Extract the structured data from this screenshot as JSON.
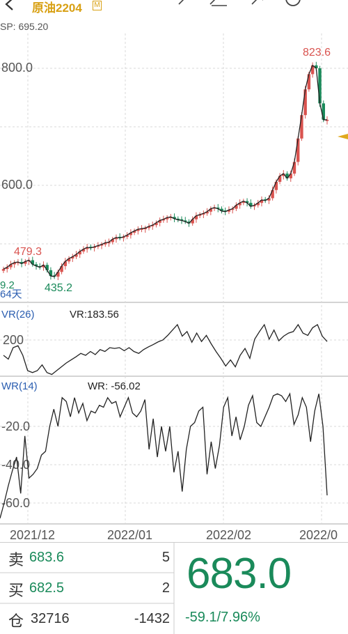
{
  "header": {
    "instrument": "原油2204",
    "badge": "M",
    "sp_label": "SP: 695.20"
  },
  "icons": [
    "back-arrow-icon",
    "draw-pen-icon",
    "drawing-tools-icon",
    "settings-icon",
    "refresh-icon",
    "menu-icon"
  ],
  "colors": {
    "up": "#d9534f",
    "down": "#1a8a5a",
    "accent": "#d8a013",
    "indicator_label": "#2a5db0"
  },
  "chart_data": [
    {
      "type": "candlestick",
      "name": "main",
      "ylim": [
        480,
        840
      ],
      "yticks": [
        "800.0",
        "600.0"
      ],
      "xlabels": [
        "2021/12",
        "2022/01",
        "2022/02",
        "2022/0"
      ],
      "annotations": {
        "high_label": "823.6",
        "low_label": "435.2",
        "left_label": "479.3",
        "edge_value": "9.2",
        "days_label": "64天"
      },
      "closes": [
        457,
        460,
        465,
        468,
        469,
        466,
        470,
        472,
        465,
        462,
        460,
        464,
        455,
        445,
        444,
        452,
        462,
        470,
        475,
        478,
        482,
        487,
        491,
        494,
        493,
        495,
        497,
        499,
        502,
        503,
        508,
        511,
        510,
        512,
        515,
        519,
        522,
        525,
        526,
        527,
        530,
        532,
        536,
        540,
        542,
        545,
        546,
        543,
        541,
        540,
        538,
        535,
        542,
        548,
        550,
        552,
        555,
        560,
        562,
        560,
        556,
        555,
        558,
        560,
        566,
        570,
        573,
        570,
        564,
        566,
        570,
        575,
        574,
        578,
        592,
        606,
        616,
        620,
        612,
        620,
        640,
        680,
        720,
        764,
        790,
        805,
        800,
        740,
        712,
        712
      ],
      "up_flags": [
        1,
        1,
        1,
        1,
        1,
        0,
        1,
        1,
        0,
        0,
        0,
        1,
        0,
        0,
        0,
        1,
        1,
        1,
        1,
        1,
        1,
        1,
        1,
        1,
        0,
        1,
        1,
        1,
        1,
        1,
        1,
        1,
        0,
        1,
        1,
        1,
        1,
        1,
        1,
        1,
        1,
        1,
        1,
        1,
        1,
        1,
        1,
        0,
        0,
        0,
        0,
        0,
        1,
        1,
        1,
        1,
        1,
        1,
        1,
        0,
        0,
        0,
        1,
        1,
        1,
        1,
        1,
        0,
        0,
        1,
        1,
        1,
        0,
        1,
        1,
        1,
        1,
        1,
        0,
        1,
        1,
        1,
        1,
        1,
        1,
        1,
        0,
        0,
        0,
        1
      ]
    },
    {
      "type": "line",
      "name": "VR",
      "title": "VR(26)",
      "value_label": "VR:183.56",
      "yticks": [
        "200"
      ],
      "ylim": [
        100,
        260
      ],
      "values": [
        160,
        150,
        180,
        185,
        160,
        120,
        115,
        120,
        135,
        115,
        110,
        120,
        130,
        140,
        148,
        156,
        165,
        160,
        170,
        162,
        175,
        170,
        180,
        178,
        180,
        172,
        180,
        170,
        165,
        175,
        182,
        188,
        195,
        200,
        212,
        226,
        240,
        210,
        222,
        194,
        218,
        196,
        212,
        190,
        170,
        152,
        132,
        148,
        130,
        160,
        178,
        152,
        202,
        222,
        240,
        202,
        226,
        198,
        210,
        218,
        222,
        240,
        218,
        212,
        232,
        240,
        210,
        196
      ]
    },
    {
      "type": "line",
      "name": "WR",
      "title": "WR(14)",
      "value_label": "WR: -56.02",
      "yticks": [
        "-20.0",
        "-40.0",
        "-60.0"
      ],
      "ylim": [
        -70,
        -1
      ],
      "values": [
        -68,
        -60,
        -51,
        -43,
        -36,
        -55,
        -25,
        -47,
        -45,
        -42,
        -35,
        -33,
        -20,
        -11,
        -20,
        -5,
        -7,
        -15,
        -5,
        -13,
        -8,
        -17,
        -12,
        -13,
        -9,
        -10,
        -5,
        -8,
        -7,
        -15,
        -10,
        -5,
        -13,
        -15,
        -12,
        -6,
        -32,
        -16,
        -36,
        -20,
        -33,
        -20,
        -44,
        -33,
        -54,
        -32,
        -20,
        -18,
        -12,
        -10,
        -45,
        -28,
        -42,
        -30,
        -10,
        -5,
        -25,
        -15,
        -27,
        -20,
        -9,
        -4,
        -18,
        -20,
        -15,
        -10,
        -4,
        -3,
        -4,
        -7,
        -3,
        -19,
        -14,
        -5,
        -10,
        -28,
        -12,
        -3,
        -20,
        -56
      ]
    }
  ],
  "quote": {
    "sell_label": "卖",
    "sell_price": "683.6",
    "sell_volume": "5",
    "buy_label": "买",
    "buy_price": "682.5",
    "buy_volume": "2",
    "oi_label": "仓",
    "oi_value": "32716",
    "oi_change": "-1432",
    "last_price": "683.0",
    "change": "-59.1/7.96%"
  }
}
